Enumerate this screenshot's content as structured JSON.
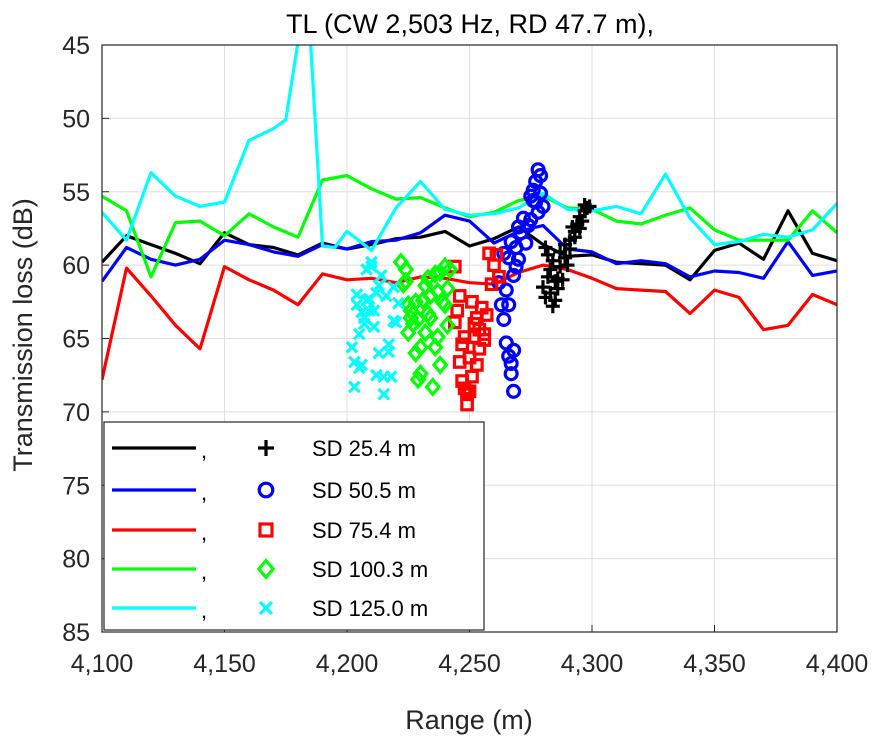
{
  "chart_data": {
    "type": "line",
    "title": "TL (CW 2,503 Hz, RD 47.7 m),",
    "xlabel": "Range (m)",
    "ylabel": "Transmission loss (dB)",
    "xlim": [
      4100,
      4400
    ],
    "ylim": [
      45,
      85
    ],
    "y_reversed": true,
    "grid": true,
    "legend_position": "bottom-left",
    "xticks": [
      4100,
      4150,
      4200,
      4250,
      4300,
      4350,
      4400
    ],
    "xtick_labels": [
      "4,100",
      "4,150",
      "4,200",
      "4,250",
      "4,300",
      "4,350",
      "4,400"
    ],
    "yticks": [
      45,
      50,
      55,
      60,
      65,
      70,
      75,
      80,
      85
    ],
    "ytick_labels": [
      "45",
      "50",
      "55",
      "60",
      "65",
      "70",
      "75",
      "80",
      "85"
    ],
    "model_series": [
      {
        "name": "SD 25.4 m model",
        "legend_label": ",",
        "color": "#000000",
        "x": [
          4100,
          4110,
          4120,
          4130,
          4140,
          4150,
          4160,
          4170,
          4180,
          4190,
          4200,
          4210,
          4220,
          4230,
          4240,
          4250,
          4260,
          4270,
          4280,
          4290,
          4300,
          4310,
          4320,
          4330,
          4340,
          4350,
          4360,
          4370,
          4380,
          4390,
          4400
        ],
        "y": [
          59.8,
          58,
          58.6,
          59.2,
          59.9,
          57.8,
          58.6,
          58.8,
          59.3,
          58.5,
          58.9,
          58.6,
          58.2,
          58.1,
          57.7,
          58.7,
          58.2,
          57.4,
          58.6,
          59.4,
          59.3,
          59.8,
          59.9,
          60.0,
          61.0,
          59.0,
          58.5,
          59.6,
          56.3,
          59.2,
          59.7
        ]
      },
      {
        "name": "SD 50.5 m model",
        "legend_label": ",",
        "color": "#0000ff",
        "x": [
          4100,
          4110,
          4120,
          4130,
          4140,
          4150,
          4160,
          4170,
          4180,
          4190,
          4200,
          4210,
          4220,
          4230,
          4240,
          4250,
          4260,
          4270,
          4280,
          4290,
          4300,
          4310,
          4320,
          4330,
          4340,
          4350,
          4360,
          4370,
          4380,
          4390,
          4400
        ],
        "y": [
          61.1,
          58.8,
          59.6,
          60,
          59.6,
          58.3,
          58.6,
          59.1,
          59.4,
          58.6,
          58.9,
          58.4,
          58.3,
          57.8,
          56.6,
          57,
          58.5,
          57.7,
          57.3,
          58.9,
          59.1,
          59.9,
          59.7,
          59.9,
          60.8,
          60.4,
          60.5,
          60.9,
          58.4,
          60.7,
          60.4
        ]
      },
      {
        "name": "SD 75.4 m model",
        "legend_label": ",",
        "color": "#ff0000",
        "x": [
          4100,
          4110,
          4120,
          4130,
          4140,
          4150,
          4160,
          4170,
          4180,
          4190,
          4200,
          4210,
          4220,
          4230,
          4240,
          4250,
          4260,
          4270,
          4280,
          4290,
          4300,
          4310,
          4320,
          4330,
          4340,
          4350,
          4360,
          4370,
          4380,
          4390,
          4400
        ],
        "y": [
          67.8,
          60.2,
          62.1,
          64.1,
          65.7,
          60.1,
          61.0,
          61.7,
          62.7,
          60.6,
          61,
          60.9,
          61.2,
          60.8,
          60.9,
          61.2,
          61.3,
          60.5,
          60.0,
          60.3,
          60.9,
          61.6,
          61.7,
          61.8,
          63.3,
          61.7,
          62.2,
          64.4,
          64.1,
          62.0,
          62.7
        ]
      },
      {
        "name": "SD 100.3 m model",
        "legend_label": ",",
        "color": "#00ff00",
        "x": [
          4100,
          4110,
          4120,
          4130,
          4140,
          4150,
          4160,
          4170,
          4180,
          4190,
          4200,
          4210,
          4220,
          4230,
          4240,
          4250,
          4260,
          4270,
          4280,
          4290,
          4300,
          4310,
          4320,
          4330,
          4340,
          4350,
          4360,
          4370,
          4380,
          4390,
          4400
        ],
        "y": [
          55.3,
          56.3,
          60.8,
          57.1,
          57,
          58,
          56.5,
          57.4,
          58.1,
          54.2,
          53.9,
          54.8,
          55.5,
          55.4,
          56.1,
          56.7,
          56.4,
          55.6,
          55.3,
          56.1,
          56.2,
          57,
          57.2,
          56.6,
          56.1,
          57.6,
          58.3,
          58.3,
          58.3,
          56.3,
          57.8
        ]
      },
      {
        "name": "SD 125.0 m model",
        "legend_label": ",",
        "color": "#00ffff",
        "x": [
          4100,
          4110,
          4120,
          4130,
          4140,
          4150,
          4160,
          4170,
          4175,
          4180,
          4185,
          4190,
          4195,
          4200,
          4210,
          4220,
          4230,
          4240,
          4250,
          4260,
          4270,
          4280,
          4290,
          4300,
          4310,
          4320,
          4330,
          4340,
          4350,
          4360,
          4370,
          4380,
          4390,
          4400
        ],
        "y": [
          56.4,
          58.3,
          53.7,
          55.3,
          56,
          55.7,
          51.5,
          50.7,
          50.1,
          44.8,
          44.5,
          58.7,
          58.8,
          57.7,
          59,
          56.1,
          54.3,
          56.2,
          56.6,
          56.5,
          56.1,
          55.1,
          56.2,
          56.3,
          56,
          56.5,
          53.8,
          56.8,
          58.6,
          58.4,
          57.9,
          58.1,
          57.6,
          55.8
        ]
      }
    ],
    "measured_series": [
      {
        "name": "SD 25.4 m",
        "marker": "plus",
        "color": "#000000",
        "x": [
          4280,
          4281,
          4282,
          4283,
          4284,
          4285,
          4286,
          4287,
          4288,
          4289,
          4290,
          4291,
          4292,
          4293,
          4294,
          4295,
          4296,
          4297,
          4298,
          4299,
          4281,
          4283,
          4285,
          4287,
          4289,
          4291,
          4293,
          4295,
          4297,
          4282,
          4284,
          4286
        ],
        "y": [
          61.5,
          62.2,
          60.8,
          61.9,
          59.7,
          62.4,
          60.9,
          59.1,
          61,
          58.6,
          60,
          58.9,
          57.4,
          58.1,
          57.2,
          56.7,
          57,
          56.3,
          56.1,
          56,
          58.8,
          60.3,
          61.1,
          60.1,
          59.5,
          58.3,
          57.7,
          57.5,
          55.9,
          59.3,
          62.8,
          61.6
        ]
      },
      {
        "name": "SD 50.5 m",
        "marker": "circle",
        "color": "#0000ff",
        "x": [
          4262,
          4263,
          4264,
          4265,
          4266,
          4267,
          4268,
          4269,
          4270,
          4271,
          4272,
          4273,
          4274,
          4275,
          4276,
          4277,
          4278,
          4279,
          4280,
          4264,
          4265,
          4266,
          4267,
          4268,
          4266,
          4267,
          4268,
          4269,
          4270,
          4275,
          4276,
          4277,
          4278,
          4279
        ],
        "y": [
          61.2,
          62.7,
          63.7,
          65.3,
          66.2,
          67.4,
          68.6,
          60.1,
          59.6,
          57.8,
          56.8,
          58.5,
          57.3,
          56.9,
          55.6,
          54.3,
          53.5,
          55.1,
          56,
          59.2,
          61.7,
          62.7,
          66.7,
          65.8,
          59.5,
          58.4,
          60.7,
          58.8,
          57.4,
          55.3,
          54.9,
          55.7,
          56.4,
          53.9
        ]
      },
      {
        "name": "SD 75.4 m",
        "marker": "square",
        "color": "#ff0000",
        "x": [
          4244,
          4245,
          4246,
          4247,
          4248,
          4249,
          4250,
          4251,
          4252,
          4253,
          4254,
          4255,
          4256,
          4257,
          4258,
          4259,
          4260,
          4261,
          4262,
          4244,
          4246,
          4248,
          4250,
          4252,
          4254,
          4256,
          4247,
          4249,
          4251,
          4253
        ],
        "y": [
          60.1,
          63.1,
          62.1,
          65.4,
          64.9,
          69.5,
          66.3,
          67.6,
          64,
          63.6,
          65.7,
          62.9,
          64.7,
          63.4,
          59.2,
          61.3,
          60,
          59.3,
          60.8,
          63.9,
          66.6,
          68.4,
          68.6,
          64.9,
          64.4,
          65.1,
          67.9,
          68.8,
          62.5,
          66.8
        ]
      },
      {
        "name": "SD 100.3 m",
        "marker": "diamond",
        "color": "#00ff00",
        "x": [
          4222,
          4223,
          4224,
          4225,
          4226,
          4227,
          4228,
          4229,
          4230,
          4231,
          4232,
          4233,
          4234,
          4235,
          4236,
          4237,
          4238,
          4239,
          4240,
          4241,
          4242,
          4224,
          4226,
          4228,
          4230,
          4232,
          4234,
          4236,
          4238,
          4240,
          4225,
          4229,
          4233,
          4237,
          4241
        ],
        "y": [
          59.8,
          61.3,
          60.3,
          62.7,
          63.1,
          64,
          66,
          67.8,
          65.6,
          62.4,
          61.4,
          63.3,
          63.6,
          68.3,
          60.6,
          64.9,
          60.5,
          62.5,
          60.1,
          64.1,
          60.3,
          61.1,
          63.6,
          62.5,
          67.4,
          64.6,
          62.1,
          65.6,
          66.8,
          62.7,
          64.6,
          63.7,
          60.9,
          61.8,
          61.6
        ]
      },
      {
        "name": "SD 125.0 m",
        "marker": "x",
        "color": "#00ffff",
        "x": [
          4202,
          4203,
          4204,
          4205,
          4206,
          4207,
          4208,
          4209,
          4210,
          4211,
          4212,
          4213,
          4214,
          4215,
          4216,
          4217,
          4218,
          4219,
          4220,
          4221,
          4203,
          4205,
          4207,
          4209,
          4211,
          4213,
          4215,
          4217,
          4219,
          4204,
          4206,
          4208,
          4210,
          4212
        ],
        "y": [
          65.6,
          68.3,
          62.7,
          67,
          63.2,
          64,
          60.3,
          62.3,
          59.8,
          64.2,
          61.9,
          66,
          60.7,
          68.8,
          62.1,
          65.9,
          67.6,
          61.5,
          63.9,
          62.6,
          66.6,
          64.7,
          63.6,
          63.1,
          63.1,
          61.4,
          67.6,
          65.4,
          63.8,
          62,
          66.8,
          62.4,
          60.1,
          67.5
        ]
      }
    ]
  }
}
